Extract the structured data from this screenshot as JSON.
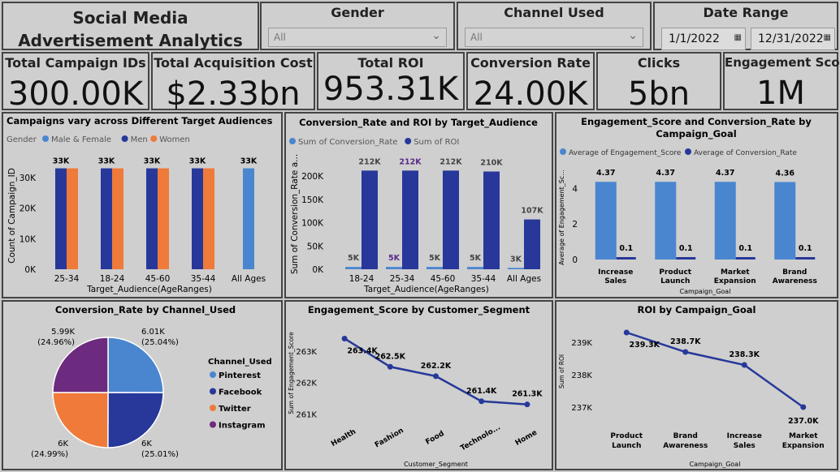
{
  "header": {
    "title": "Social Media Advertisement Analytics"
  },
  "filters": {
    "gender": {
      "label": "Gender",
      "value": "All"
    },
    "channel": {
      "label": "Channel Used",
      "value": "All"
    },
    "date_range": {
      "label": "Date Range",
      "start": "1/1/2022",
      "end": "12/31/2022"
    }
  },
  "kpis": [
    {
      "label": "Total Campaign IDs",
      "value": "300.00K"
    },
    {
      "label": "Total Acquisition Cost",
      "value": "$2.33bn"
    },
    {
      "label": "Total ROI",
      "value": "953.31K"
    },
    {
      "label": "Conversion Rate",
      "value": "24.00K"
    },
    {
      "label": "Clicks",
      "value": "5bn"
    },
    {
      "label": "Engagement Score",
      "value": "1M"
    }
  ],
  "colors": {
    "light_blue": "#4a86d0",
    "navy": "#27389a",
    "orange": "#ef7a3a",
    "purple": "#6c2b7e"
  },
  "chart_data": [
    {
      "id": "campaigns_by_audience",
      "type": "bar",
      "title": "Campaigns vary across Different Target Audiences",
      "legend_title": "Gender",
      "xlabel": "Target_Audience(AgeRanges)",
      "ylabel": "Count of Campaign_ID",
      "ylim": [
        0,
        35000
      ],
      "yticks": [
        "0K",
        "10K",
        "20K",
        "30K"
      ],
      "categories": [
        "25-34",
        "18-24",
        "45-60",
        "35-44",
        "All Ages"
      ],
      "series": [
        {
          "name": "Male & Female",
          "color": "#4a86d0",
          "values": [
            null,
            null,
            null,
            null,
            33000
          ],
          "labels": [
            "",
            "",
            "",
            "",
            "33K"
          ]
        },
        {
          "name": "Men",
          "color": "#27389a",
          "values": [
            33000,
            33000,
            33000,
            33000,
            null
          ],
          "labels": [
            "33K",
            "33K",
            "33K",
            "33K",
            ""
          ]
        },
        {
          "name": "Women",
          "color": "#ef7a3a",
          "values": [
            33000,
            33000,
            33000,
            33000,
            null
          ],
          "labels": [
            "",
            "",
            "",
            "",
            ""
          ]
        }
      ]
    },
    {
      "id": "conv_roi_by_audience",
      "type": "bar",
      "title": "Conversion_Rate and ROI by Target_Audience",
      "xlabel": "Target_Audience(AgeRanges)",
      "ylabel": "Sum of Conversion_Rate a...",
      "ylim": [
        0,
        230000
      ],
      "yticks": [
        "0K",
        "50K",
        "100K",
        "150K",
        "200K"
      ],
      "categories": [
        "18-24",
        "25-34",
        "45-60",
        "35-44",
        "All Ages"
      ],
      "series": [
        {
          "name": "Sum of Conversion_Rate",
          "color": "#4a86d0",
          "values": [
            5000,
            5000,
            5000,
            5000,
            3000
          ],
          "labels": [
            "5K",
            "5K",
            "5K",
            "5K",
            "3K"
          ]
        },
        {
          "name": "Sum of ROI",
          "color": "#27389a",
          "values": [
            212000,
            212000,
            212000,
            210000,
            107000
          ],
          "labels": [
            "212K",
            "212K",
            "212K",
            "210K",
            "107K"
          ]
        }
      ]
    },
    {
      "id": "engagement_conv_by_goal",
      "type": "bar",
      "title": "Engagement_Score and Conversion_Rate by Campaign_Goal",
      "xlabel": "Campaign_Goal",
      "ylabel": "Average of Engagement_Sc...",
      "ylim": [
        0,
        5.2
      ],
      "yticks": [
        "0",
        "2",
        "4"
      ],
      "categories": [
        "Increase Sales",
        "Product Launch",
        "Market Expansion",
        "Brand Awareness"
      ],
      "series": [
        {
          "name": "Average of Engagement_Score",
          "color": "#4a86d0",
          "values": [
            4.37,
            4.37,
            4.37,
            4.36
          ],
          "labels": [
            "4.37",
            "4.37",
            "4.37",
            "4.36"
          ]
        },
        {
          "name": "Average of Conversion_Rate",
          "color": "#27389a",
          "values": [
            0.1,
            0.1,
            0.1,
            0.1
          ],
          "labels": [
            "0.1",
            "0.1",
            "0.1",
            "0.1"
          ]
        }
      ]
    },
    {
      "id": "conv_by_channel",
      "type": "pie",
      "title": "Conversion_Rate by Channel_Used",
      "legend_title": "Channel_Used",
      "slices": [
        {
          "name": "Pinterest",
          "value": 6.01,
          "label": "6.01K",
          "pct": "(25.04%)",
          "color": "#4a86d0"
        },
        {
          "name": "Facebook",
          "value": 6.0,
          "label": "6K",
          "pct": "(25.01%)",
          "color": "#27389a"
        },
        {
          "name": "Twitter",
          "value": 6.0,
          "label": "6K",
          "pct": "(24.99%)",
          "color": "#ef7a3a"
        },
        {
          "name": "Instagram",
          "value": 5.99,
          "label": "5.99K",
          "pct": "(24.96%)",
          "color": "#6c2b7e"
        }
      ]
    },
    {
      "id": "engagement_by_segment",
      "type": "line",
      "title": "Engagement_Score by Customer_Segment",
      "xlabel": "Customer_Segment",
      "ylabel": "Sum of Engagement_Score",
      "ylim": [
        260800,
        263800
      ],
      "yticks": [
        {
          "v": 261000,
          "t": "261K"
        },
        {
          "v": 262000,
          "t": "262K"
        },
        {
          "v": 263000,
          "t": "263K"
        }
      ],
      "categories": [
        "Health",
        "Fashion",
        "Food",
        "Technolo...",
        "Home"
      ],
      "values": [
        263400,
        262500,
        262200,
        261400,
        261300
      ],
      "labels": [
        "263.4K",
        "262.5K",
        "262.2K",
        "261.4K",
        "261.3K"
      ]
    },
    {
      "id": "roi_by_goal",
      "type": "line",
      "title": "ROI by Campaign_Goal",
      "xlabel": "Campaign_Goal",
      "ylabel": "Sum of ROI",
      "ylim": [
        236700,
        239500
      ],
      "yticks": [
        {
          "v": 237000,
          "t": "237K"
        },
        {
          "v": 238000,
          "t": "238K"
        },
        {
          "v": 239000,
          "t": "239K"
        }
      ],
      "categories": [
        "Product Launch",
        "Brand Awareness",
        "Increase Sales",
        "Market Expansion"
      ],
      "values": [
        239300,
        238700,
        238300,
        237000
      ],
      "labels": [
        "239.3K",
        "238.7K",
        "238.3K",
        "237.0K"
      ]
    }
  ]
}
